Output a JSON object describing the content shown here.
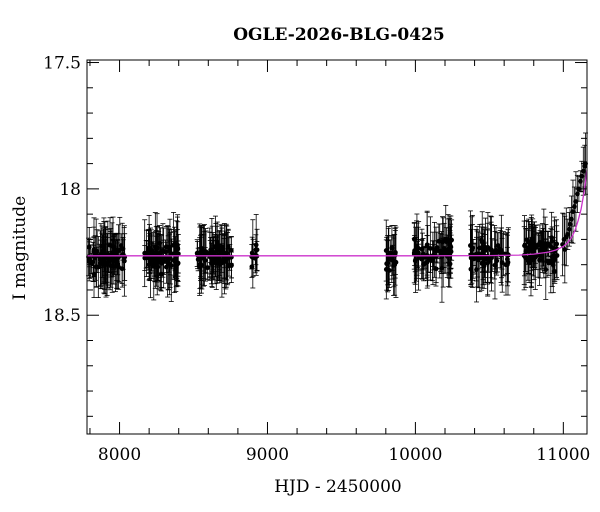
{
  "chart_data": {
    "type": "scatter",
    "title": "OGLE-2026-BLG-0425",
    "xlabel": "HJD - 2450000",
    "ylabel": "I magnitude",
    "xlim": [
      7780,
      11160
    ],
    "ylim": [
      18.97,
      17.49
    ],
    "y_inverted": true,
    "grid": false,
    "x_ticks": [
      {
        "value": 8000,
        "label": "8000"
      },
      {
        "value": 9000,
        "label": "9000"
      },
      {
        "value": 10000,
        "label": "10000"
      },
      {
        "value": 11000,
        "label": "11000"
      }
    ],
    "y_ticks": [
      {
        "value": 17.5,
        "label": "17.5"
      },
      {
        "value": 18.0,
        "label": "18"
      },
      {
        "value": 18.5,
        "label": "18.5"
      }
    ],
    "colors": {
      "points": "#000000",
      "model": "#cc33cc",
      "frame": "#000000"
    },
    "model": {
      "name": "",
      "baseline_mag": 18.265,
      "x": [
        7780,
        8500,
        9000,
        9500,
        10000,
        10500,
        10700,
        10800,
        10900,
        10950,
        11000,
        11030,
        11060,
        11080,
        11100,
        11120,
        11140,
        11160
      ],
      "y": [
        18.265,
        18.265,
        18.265,
        18.265,
        18.265,
        18.264,
        18.262,
        18.258,
        18.25,
        18.242,
        18.228,
        18.212,
        18.188,
        18.162,
        18.126,
        18.08,
        18.015,
        17.925
      ]
    },
    "seasons": [
      {
        "x_range": [
          7790,
          8040
        ],
        "mag_range": [
          18.2,
          18.34
        ],
        "count": 80
      },
      {
        "x_range": [
          8170,
          8400
        ],
        "mag_range": [
          18.2,
          18.34
        ],
        "count": 75
      },
      {
        "x_range": [
          8520,
          8760
        ],
        "mag_range": [
          18.2,
          18.34
        ],
        "count": 80
      },
      {
        "x_range": [
          8890,
          8930
        ],
        "mag_range": [
          18.19,
          18.33
        ],
        "count": 10
      },
      {
        "x_range": [
          9800,
          9870
        ],
        "mag_range": [
          18.2,
          18.36
        ],
        "count": 20
      },
      {
        "x_range": [
          9990,
          10250
        ],
        "mag_range": [
          18.18,
          18.33
        ],
        "count": 70
      },
      {
        "x_range": [
          10370,
          10630
        ],
        "mag_range": [
          18.18,
          18.34
        ],
        "count": 65
      },
      {
        "x_range": [
          10730,
          10960
        ],
        "mag_range": [
          18.17,
          18.34
        ],
        "count": 70
      }
    ],
    "rising_points": [
      {
        "x": 10995,
        "y": 18.22
      },
      {
        "x": 11005,
        "y": 18.2
      },
      {
        "x": 11010,
        "y": 18.24
      },
      {
        "x": 11020,
        "y": 18.19
      },
      {
        "x": 11030,
        "y": 18.18
      },
      {
        "x": 11040,
        "y": 18.16
      },
      {
        "x": 11045,
        "y": 18.14
      },
      {
        "x": 11055,
        "y": 18.12
      },
      {
        "x": 11065,
        "y": 18.09
      },
      {
        "x": 11075,
        "y": 18.07
      },
      {
        "x": 11085,
        "y": 18.05
      },
      {
        "x": 11095,
        "y": 18.02
      },
      {
        "x": 11105,
        "y": 18.0
      },
      {
        "x": 11115,
        "y": 17.97
      },
      {
        "x": 11125,
        "y": 17.95
      },
      {
        "x": 11135,
        "y": 17.93
      },
      {
        "x": 11145,
        "y": 17.91
      },
      {
        "x": 11150,
        "y": 17.9
      }
    ]
  }
}
